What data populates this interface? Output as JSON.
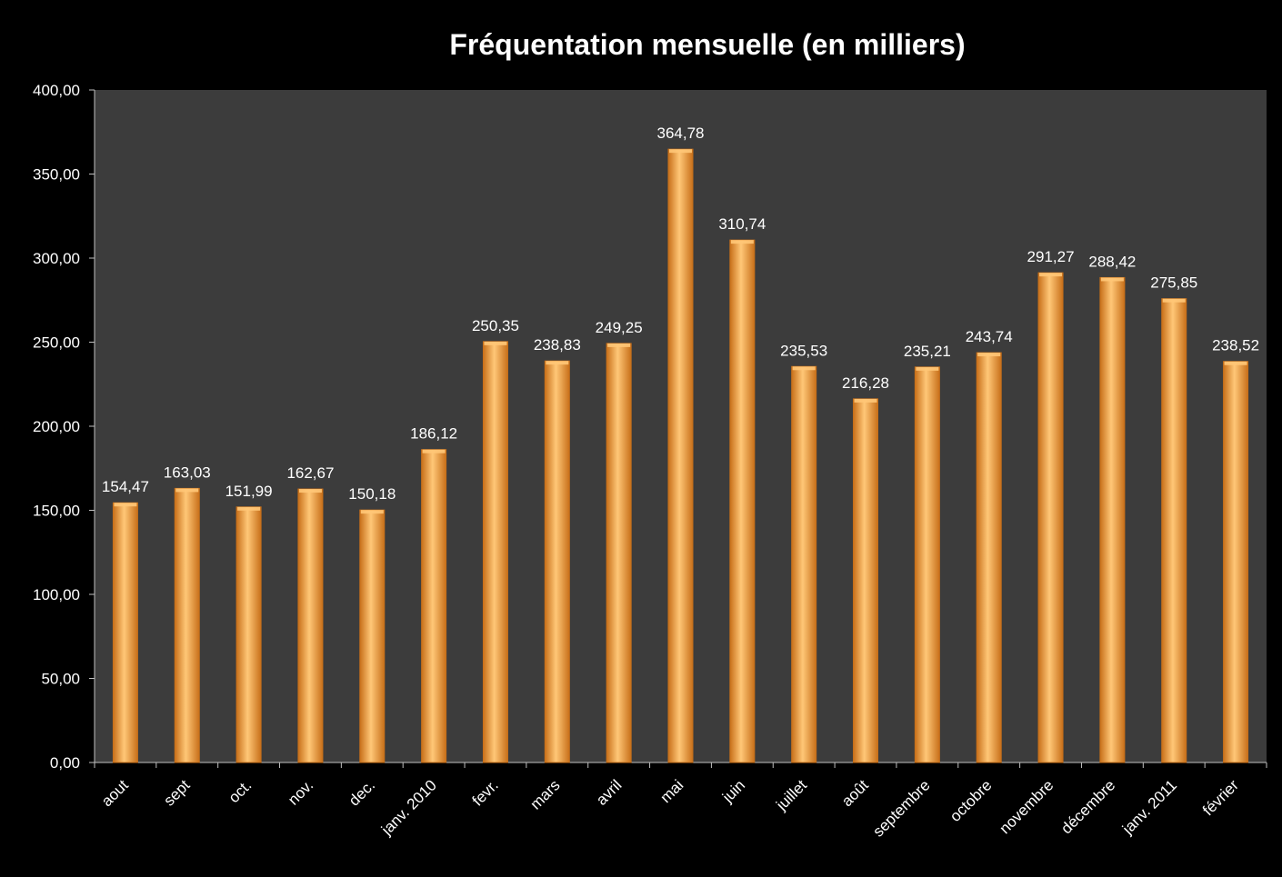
{
  "colors": {
    "page_background": "#000000",
    "plot_background": "#3c3c3c",
    "bar_fill": "#f39a2e",
    "bar_highlight": "#ffc777",
    "bar_shadow": "#c8701a",
    "text": "#ffffff",
    "axis": "#bfbfbf"
  },
  "chart_data": {
    "type": "bar",
    "title": "Fréquentation mensuelle (en milliers)",
    "xlabel": "",
    "ylabel": "",
    "ylim": [
      0,
      400
    ],
    "ytick_step": 50,
    "yticks": [
      "0,00",
      "50,00",
      "100,00",
      "150,00",
      "200,00",
      "250,00",
      "300,00",
      "350,00",
      "400,00"
    ],
    "grid": false,
    "legend": "none",
    "categories": [
      "aout",
      "sept",
      "oct.",
      "nov.",
      "dec.",
      "janv. 2010",
      "fevr.",
      "mars",
      "avril",
      "mai",
      "juin",
      "juillet",
      "août",
      "septembre",
      "octobre",
      "novembre",
      "décembre",
      "janv. 2011",
      "février"
    ],
    "values": [
      154.47,
      163.03,
      151.99,
      162.67,
      150.18,
      186.12,
      250.35,
      238.83,
      249.25,
      364.78,
      310.74,
      235.53,
      216.28,
      235.21,
      243.74,
      291.27,
      288.42,
      275.85,
      238.52
    ],
    "value_labels": [
      "154,47",
      "163,03",
      "151,99",
      "162,67",
      "150,18",
      "186,12",
      "250,35",
      "238,83",
      "249,25",
      "364,78",
      "310,74",
      "235,53",
      "216,28",
      "235,21",
      "243,74",
      "291,27",
      "288,42",
      "275,85",
      "238,52"
    ]
  }
}
